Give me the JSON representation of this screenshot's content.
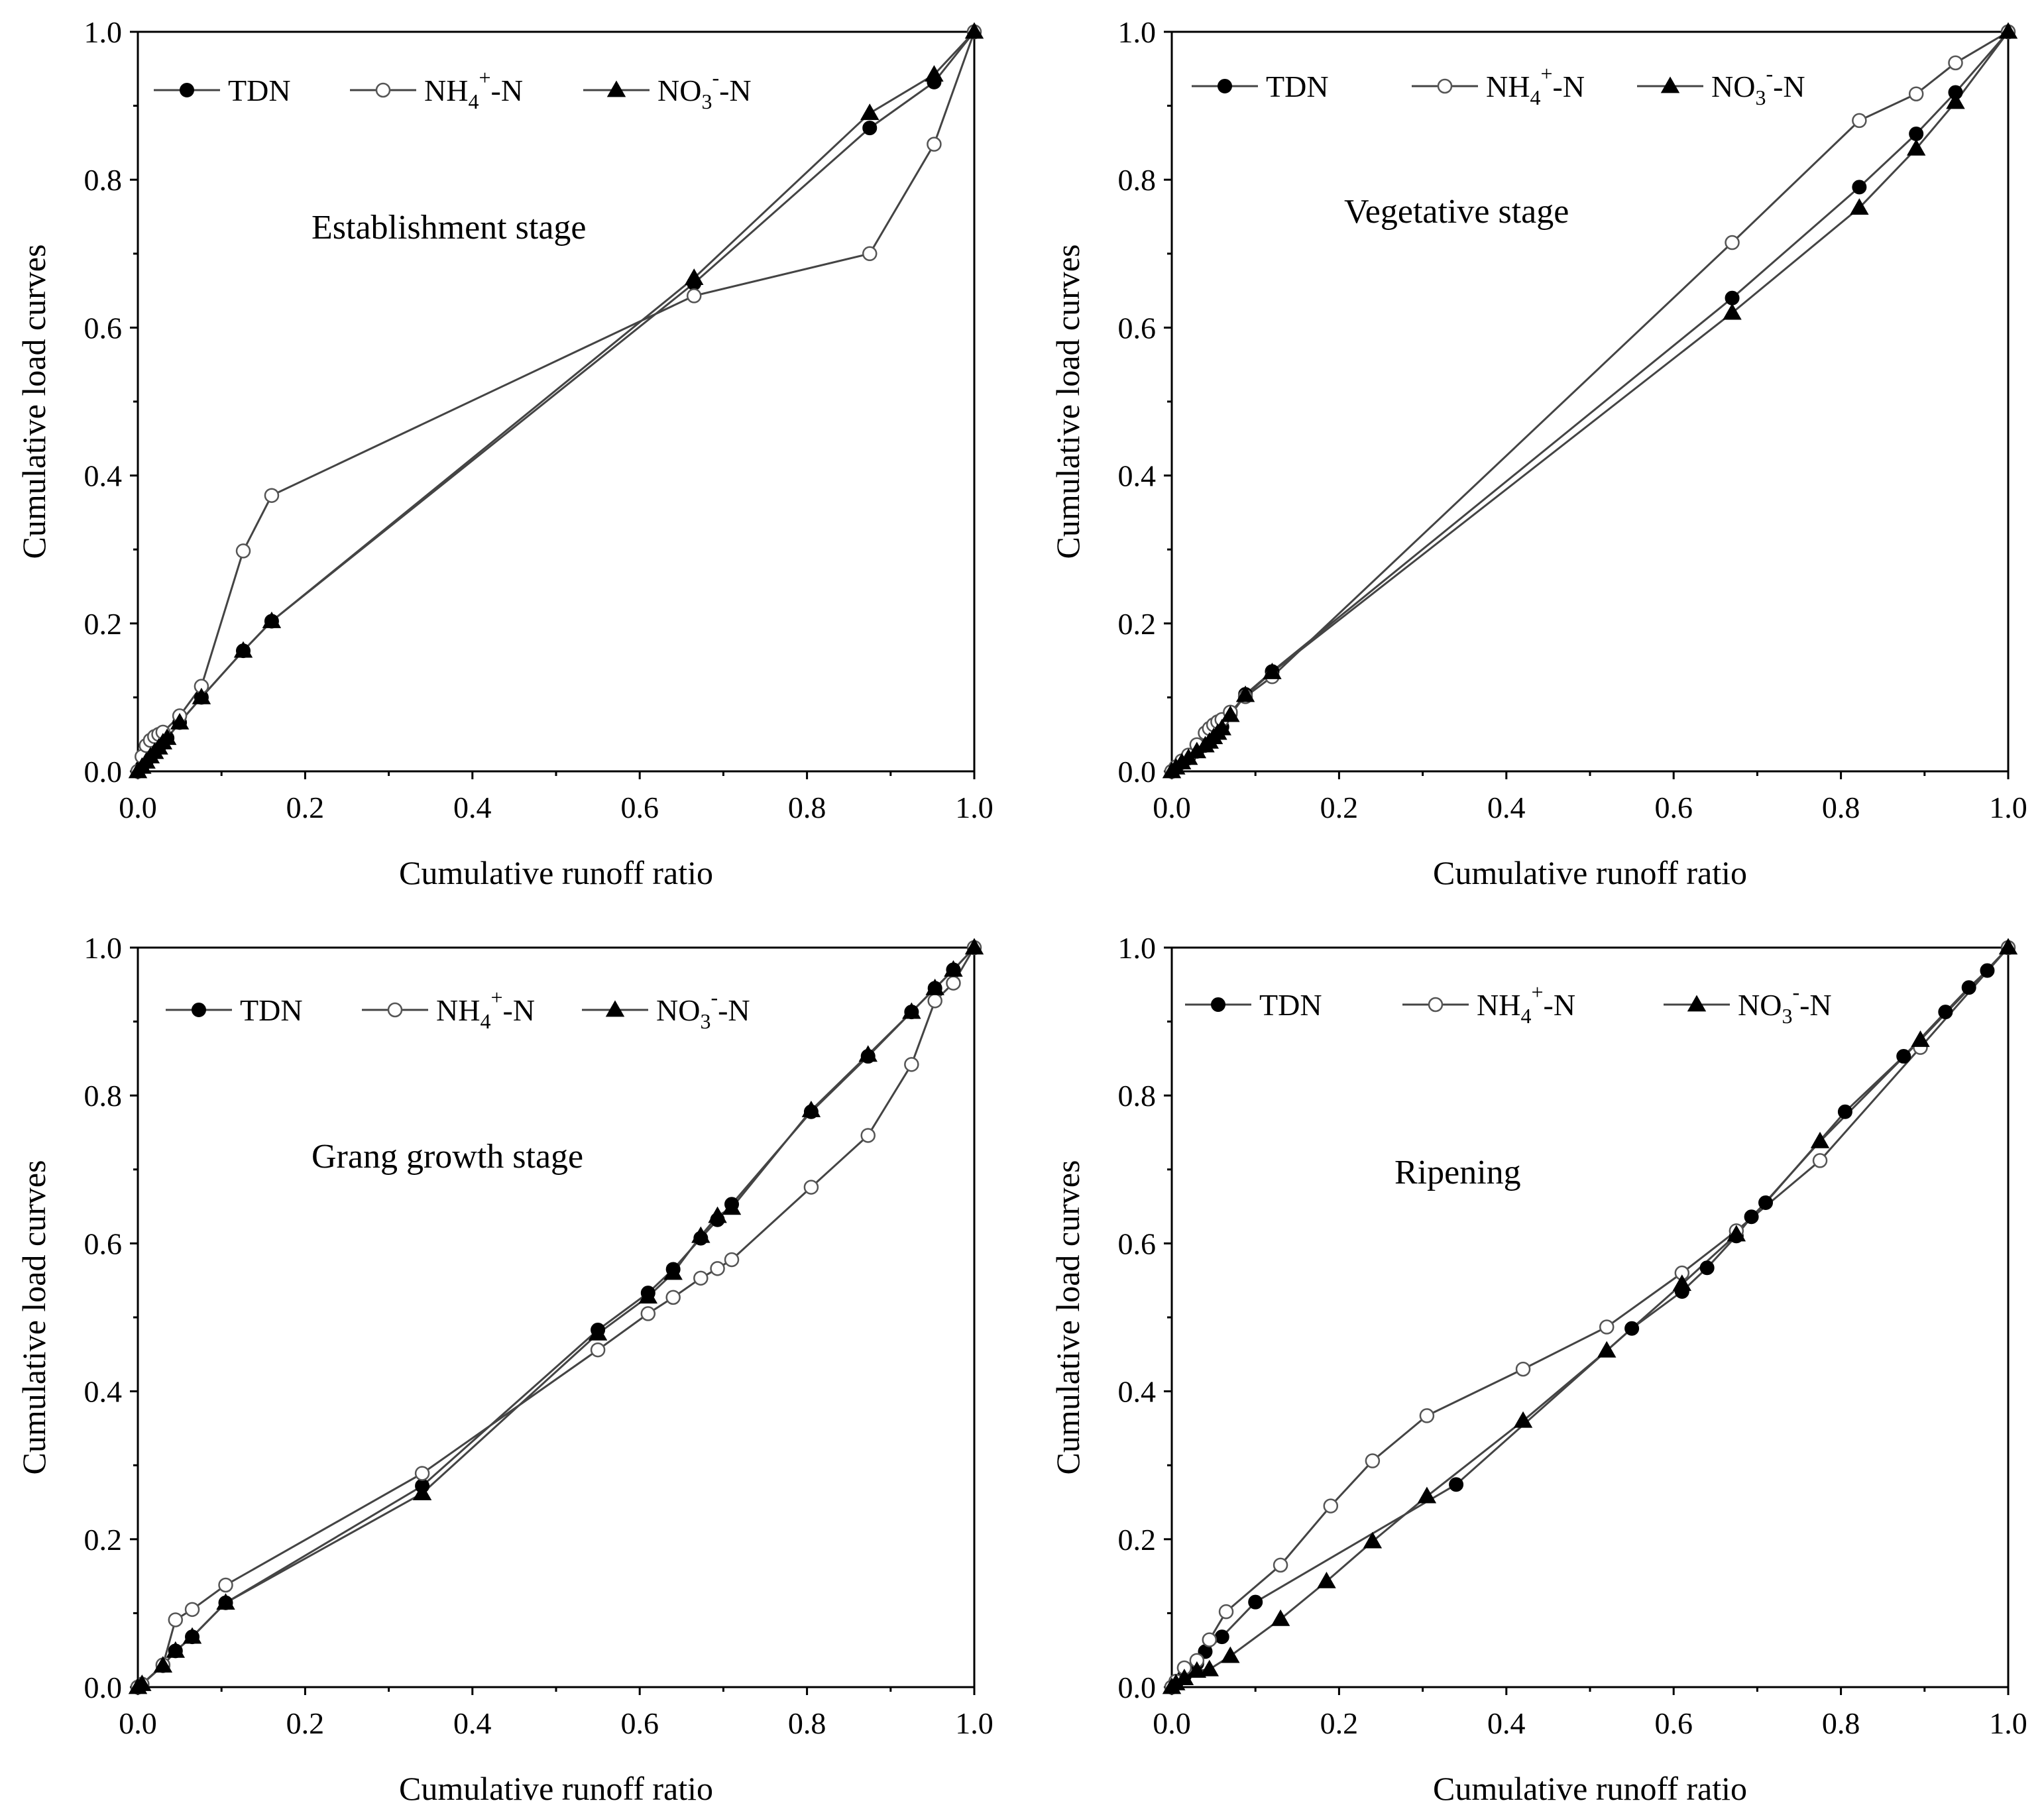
{
  "chart_data": [
    {
      "type": "line",
      "annotation": "Establishment stage",
      "xlabel": "Cumulative runoff ratio",
      "ylabel": "Cumulative load curves",
      "xlim": [
        0,
        1
      ],
      "ylim": [
        0,
        1
      ],
      "xticks": [
        "0.0",
        "0.2",
        "0.4",
        "0.6",
        "0.8",
        "1.0"
      ],
      "yticks": [
        "0.0",
        "0.2",
        "0.4",
        "0.6",
        "0.8",
        "1.0"
      ],
      "legend": {
        "placement": "top",
        "entries": [
          {
            "name": "TDN",
            "sup": "",
            "sub": "",
            "tail": "",
            "marker": "filled-circle"
          },
          {
            "name": "NH",
            "sub": "4",
            "sup": "+",
            "tail": "-N",
            "marker": "open-circle"
          },
          {
            "name": "NO",
            "sub": "3",
            "sup": "-",
            "tail": "-N",
            "marker": "filled-triangle"
          }
        ]
      },
      "series": [
        {
          "name": "TDN",
          "marker": "filled-circle",
          "x": [
            0,
            0.005,
            0.01,
            0.015,
            0.02,
            0.025,
            0.03,
            0.035,
            0.05,
            0.076,
            0.126,
            0.16,
            0.665,
            0.875,
            0.952,
            1.0
          ],
          "y": [
            0,
            0.006,
            0.013,
            0.02,
            0.026,
            0.032,
            0.039,
            0.045,
            0.066,
            0.1,
            0.163,
            0.203,
            0.66,
            0.87,
            0.932,
            1.0
          ]
        },
        {
          "name": "NH4+-N",
          "marker": "open-circle",
          "x": [
            0,
            0.005,
            0.01,
            0.015,
            0.02,
            0.025,
            0.03,
            0.05,
            0.076,
            0.126,
            0.16,
            0.665,
            0.875,
            0.952,
            1.0
          ],
          "y": [
            0,
            0.02,
            0.035,
            0.042,
            0.047,
            0.05,
            0.053,
            0.075,
            0.115,
            0.298,
            0.373,
            0.643,
            0.7,
            0.848,
            1.0
          ]
        },
        {
          "name": "NO3--N",
          "marker": "filled-triangle",
          "x": [
            0,
            0.005,
            0.01,
            0.015,
            0.02,
            0.025,
            0.03,
            0.035,
            0.05,
            0.076,
            0.126,
            0.16,
            0.665,
            0.875,
            0.952,
            1.0
          ],
          "y": [
            0,
            0.006,
            0.013,
            0.02,
            0.026,
            0.032,
            0.039,
            0.045,
            0.066,
            0.1,
            0.163,
            0.203,
            0.667,
            0.89,
            0.942,
            1.0
          ]
        }
      ]
    },
    {
      "type": "line",
      "annotation": "Vegetative stage",
      "xlabel": "Cumulative runoff ratio",
      "ylabel": "Cumulative load curves",
      "xlim": [
        0,
        1
      ],
      "ylim": [
        0,
        1
      ],
      "xticks": [
        "0.0",
        "0.2",
        "0.4",
        "0.6",
        "0.8",
        "1.0"
      ],
      "yticks": [
        "0.0",
        "0.2",
        "0.4",
        "0.6",
        "0.8",
        "1.0"
      ],
      "legend": {
        "placement": "top",
        "entries": [
          {
            "name": "TDN",
            "sup": "",
            "sub": "",
            "tail": "",
            "marker": "filled-circle"
          },
          {
            "name": "NH",
            "sub": "4",
            "sup": "+",
            "tail": "-N",
            "marker": "open-circle"
          },
          {
            "name": "NO",
            "sub": "3",
            "sup": "-",
            "tail": "-N",
            "marker": "filled-triangle"
          }
        ]
      },
      "series": [
        {
          "name": "TDN",
          "marker": "filled-circle",
          "x": [
            0,
            0.005,
            0.012,
            0.02,
            0.03,
            0.04,
            0.045,
            0.05,
            0.055,
            0.06,
            0.07,
            0.088,
            0.12,
            0.67,
            0.822,
            0.89,
            0.937,
            1.0
          ],
          "y": [
            0,
            0.005,
            0.012,
            0.018,
            0.027,
            0.035,
            0.04,
            0.047,
            0.053,
            0.06,
            0.078,
            0.104,
            0.135,
            0.64,
            0.79,
            0.862,
            0.918,
            1.0
          ]
        },
        {
          "name": "NH4+-N",
          "marker": "open-circle",
          "x": [
            0,
            0.005,
            0.012,
            0.02,
            0.03,
            0.04,
            0.045,
            0.05,
            0.055,
            0.06,
            0.07,
            0.088,
            0.12,
            0.67,
            0.822,
            0.89,
            0.937,
            1.0
          ],
          "y": [
            0,
            0.006,
            0.014,
            0.022,
            0.036,
            0.052,
            0.058,
            0.063,
            0.067,
            0.07,
            0.08,
            0.101,
            0.128,
            0.715,
            0.88,
            0.916,
            0.958,
            1.0
          ]
        },
        {
          "name": "NO3--N",
          "marker": "filled-triangle",
          "x": [
            0,
            0.005,
            0.012,
            0.02,
            0.03,
            0.04,
            0.045,
            0.05,
            0.055,
            0.06,
            0.07,
            0.088,
            0.12,
            0.67,
            0.822,
            0.89,
            0.937,
            1.0
          ],
          "y": [
            0,
            0.005,
            0.012,
            0.018,
            0.027,
            0.035,
            0.04,
            0.046,
            0.052,
            0.058,
            0.076,
            0.103,
            0.134,
            0.62,
            0.762,
            0.842,
            0.905,
            1.0
          ]
        }
      ]
    },
    {
      "type": "line",
      "annotation": "Grang growth stage",
      "xlabel": "Cumulative runoff ratio",
      "ylabel": "Cumulative load curves",
      "xlim": [
        0,
        1
      ],
      "ylim": [
        0,
        1
      ],
      "xticks": [
        "0.0",
        "0.2",
        "0.4",
        "0.6",
        "0.8",
        "1.0"
      ],
      "yticks": [
        "0.0",
        "0.2",
        "0.4",
        "0.6",
        "0.8",
        "1.0"
      ],
      "legend": {
        "placement": "top",
        "entries": [
          {
            "name": "TDN",
            "sup": "",
            "sub": "",
            "tail": "",
            "marker": "filled-circle"
          },
          {
            "name": "NH",
            "sub": "4",
            "sup": "+",
            "tail": "-N",
            "marker": "open-circle"
          },
          {
            "name": "NO",
            "sub": "3",
            "sup": "-",
            "tail": "-N",
            "marker": "filled-triangle"
          }
        ]
      },
      "series": [
        {
          "name": "TDN",
          "marker": "filled-circle",
          "x": [
            0,
            0.005,
            0.03,
            0.045,
            0.065,
            0.105,
            0.34,
            0.55,
            0.61,
            0.64,
            0.673,
            0.693,
            0.71,
            0.805,
            0.873,
            0.925,
            0.953,
            0.975,
            1.0
          ],
          "y": [
            0,
            0.004,
            0.029,
            0.049,
            0.068,
            0.114,
            0.272,
            0.483,
            0.533,
            0.565,
            0.607,
            0.632,
            0.653,
            0.778,
            0.853,
            0.913,
            0.945,
            0.97,
            1.0
          ]
        },
        {
          "name": "NH4+-N",
          "marker": "open-circle",
          "x": [
            0,
            0.005,
            0.03,
            0.045,
            0.065,
            0.105,
            0.34,
            0.55,
            0.61,
            0.64,
            0.673,
            0.693,
            0.71,
            0.805,
            0.873,
            0.925,
            0.953,
            0.975,
            1.0
          ],
          "y": [
            0,
            0.004,
            0.03,
            0.091,
            0.105,
            0.138,
            0.289,
            0.456,
            0.505,
            0.527,
            0.553,
            0.566,
            0.578,
            0.676,
            0.746,
            0.842,
            0.928,
            0.952,
            1.0
          ]
        },
        {
          "name": "NO3--N",
          "marker": "filled-triangle",
          "x": [
            0,
            0.005,
            0.03,
            0.045,
            0.065,
            0.105,
            0.34,
            0.55,
            0.61,
            0.64,
            0.673,
            0.693,
            0.71,
            0.805,
            0.873,
            0.925,
            0.953,
            0.975,
            1.0
          ],
          "y": [
            0,
            0.004,
            0.029,
            0.049,
            0.068,
            0.114,
            0.262,
            0.478,
            0.528,
            0.56,
            0.61,
            0.637,
            0.648,
            0.78,
            0.855,
            0.913,
            0.945,
            0.97,
            1.0
          ]
        }
      ]
    },
    {
      "type": "line",
      "annotation": "Ripening",
      "xlabel": "Cumulative runoff ratio",
      "ylabel": "Cumulative load curves",
      "xlim": [
        0,
        1
      ],
      "ylim": [
        0,
        1
      ],
      "xticks": [
        "0.0",
        "0.2",
        "0.4",
        "0.6",
        "0.8",
        "1.0"
      ],
      "yticks": [
        "0.0",
        "0.2",
        "0.4",
        "0.6",
        "0.8",
        "1.0"
      ],
      "legend": {
        "placement": "top",
        "entries": [
          {
            "name": "TDN",
            "sup": "",
            "sub": "",
            "tail": "",
            "marker": "filled-circle"
          },
          {
            "name": "NH",
            "sub": "4",
            "sup": "+",
            "tail": "-N",
            "marker": "open-circle"
          },
          {
            "name": "NO",
            "sub": "3",
            "sup": "-",
            "tail": "-N",
            "marker": "filled-triangle"
          }
        ]
      },
      "series": [
        {
          "name": "TDN",
          "marker": "filled-circle",
          "x": [
            0,
            0.005,
            0.015,
            0.03,
            0.04,
            0.06,
            0.1,
            0.34,
            0.55,
            0.61,
            0.64,
            0.675,
            0.693,
            0.71,
            0.805,
            0.875,
            0.925,
            0.953,
            0.975,
            1.0
          ],
          "y": [
            0,
            0.005,
            0.015,
            0.032,
            0.048,
            0.068,
            0.115,
            0.274,
            0.485,
            0.535,
            0.567,
            0.61,
            0.636,
            0.655,
            0.778,
            0.853,
            0.913,
            0.946,
            0.969,
            1.0
          ]
        },
        {
          "name": "NH4+-N",
          "marker": "open-circle",
          "x": [
            0,
            0.005,
            0.015,
            0.03,
            0.045,
            0.065,
            0.13,
            0.19,
            0.24,
            0.305,
            0.42,
            0.52,
            0.61,
            0.675,
            0.775,
            0.895,
            1.0
          ],
          "y": [
            0,
            0.008,
            0.026,
            0.036,
            0.064,
            0.102,
            0.165,
            0.245,
            0.306,
            0.367,
            0.43,
            0.487,
            0.56,
            0.617,
            0.712,
            0.865,
            1.0
          ]
        },
        {
          "name": "NO3--N",
          "marker": "filled-triangle",
          "x": [
            0,
            0.005,
            0.015,
            0.03,
            0.045,
            0.07,
            0.13,
            0.185,
            0.24,
            0.305,
            0.42,
            0.52,
            0.61,
            0.675,
            0.775,
            0.895,
            1.0
          ],
          "y": [
            0,
            0.005,
            0.012,
            0.022,
            0.024,
            0.042,
            0.092,
            0.143,
            0.197,
            0.258,
            0.36,
            0.455,
            0.545,
            0.612,
            0.738,
            0.875,
            1.0
          ]
        }
      ]
    }
  ]
}
